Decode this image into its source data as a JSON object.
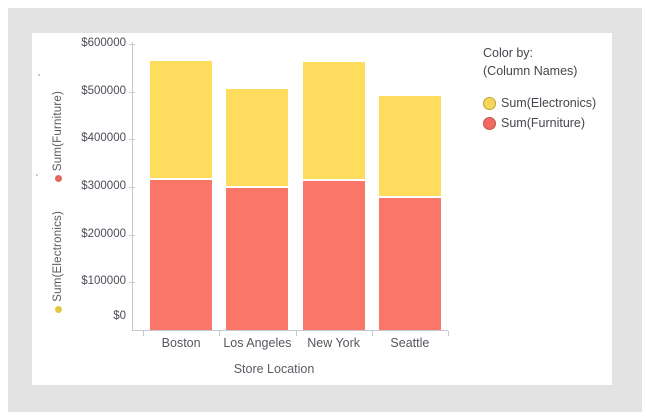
{
  "legend": {
    "title_line1": "Color by:",
    "title_line2": "(Column Names)",
    "items": [
      {
        "label": "Sum(Electronics)",
        "fill": "#f5d65b",
        "border": "#c2a236"
      },
      {
        "label": "Sum(Furniture)",
        "fill": "#f26a5f",
        "border": "#bd584f"
      }
    ]
  },
  "y_axis": {
    "measures": [
      {
        "label": "Sum(Furniture)",
        "dot_color": "#e0695c"
      },
      {
        "label": "Sum(Electronics)",
        "dot_color": "#e4c83e"
      }
    ]
  },
  "chart_data": {
    "type": "bar",
    "stacked": true,
    "title": "",
    "xlabel": "Store Location",
    "ylabel": "",
    "categories": [
      "Boston",
      "Los Angeles",
      "New York",
      "Seattle"
    ],
    "series": [
      {
        "name": "Sum(Furniture)",
        "color": "#fa7668",
        "values": [
          315000,
          297000,
          312000,
          277000
        ]
      },
      {
        "name": "Sum(Electronics)",
        "color": "#fedc5e",
        "values": [
          250000,
          208000,
          251000,
          214000
        ]
      }
    ],
    "totals": [
      565000,
      505000,
      563000,
      491000
    ],
    "ylim": [
      0,
      600000
    ],
    "ytick_step": 100000,
    "ytick_labels": [
      "$600000",
      "$500000",
      "$400000",
      "$300000",
      "$200000",
      "$100000",
      "$0"
    ],
    "grid": false,
    "legend_position": "right"
  },
  "colors": {
    "canvas_bg": "#e3e3e4",
    "panel_bg": "#ffffff",
    "axis_line": "#c6c8d2",
    "furniture_bar": "#fa7668",
    "electronics_bar": "#fedc5e"
  }
}
